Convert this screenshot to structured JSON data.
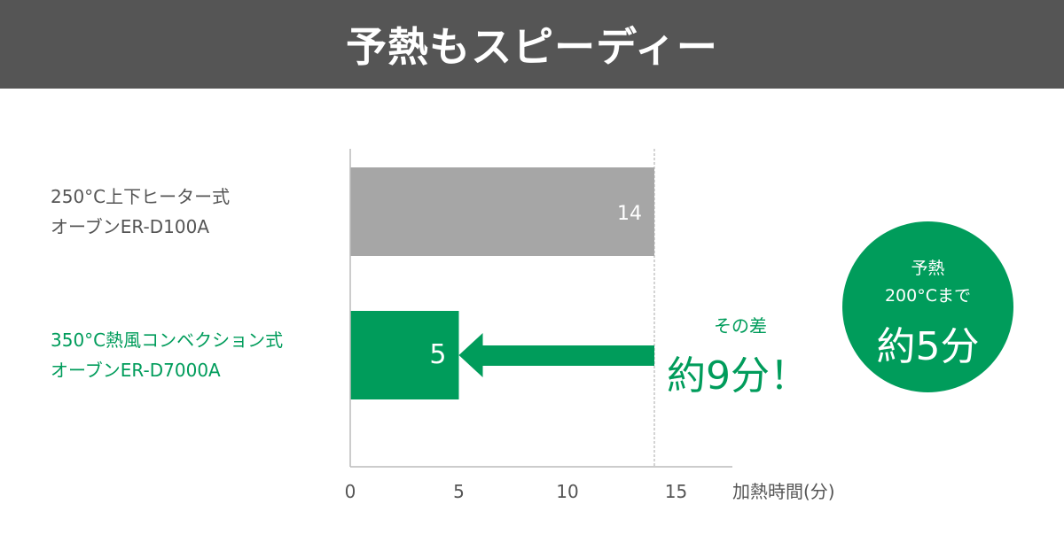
{
  "header": {
    "title": "予熱もスピーディー"
  },
  "colors": {
    "header_bg": "#555555",
    "accent": "#009c5b",
    "gray_bar": "#a6a6a6",
    "label_gray": "#555555"
  },
  "chart_data": {
    "type": "bar",
    "orientation": "horizontal",
    "categories": [
      [
        "250°C上下ヒーター式",
        "オーブンER-D100A"
      ],
      [
        "350°C熱風コンベクション式",
        "オーブンER-D7000A"
      ]
    ],
    "values": [
      14,
      5
    ],
    "data_labels": [
      "14",
      "5"
    ],
    "bar_colors": [
      "#a6a6a6",
      "#009c5b"
    ],
    "xlabel": "加熱時間(分)",
    "xlim": [
      0,
      15
    ],
    "xticks": [
      "0",
      "5",
      "10",
      "15"
    ],
    "grid": false,
    "annotation": {
      "small": "その差",
      "big": "約9分！",
      "arrow_from": 14,
      "arrow_to": 5
    }
  },
  "badge": {
    "line1": "予熱",
    "line2": "200°Cまで",
    "line3": "約5分"
  }
}
